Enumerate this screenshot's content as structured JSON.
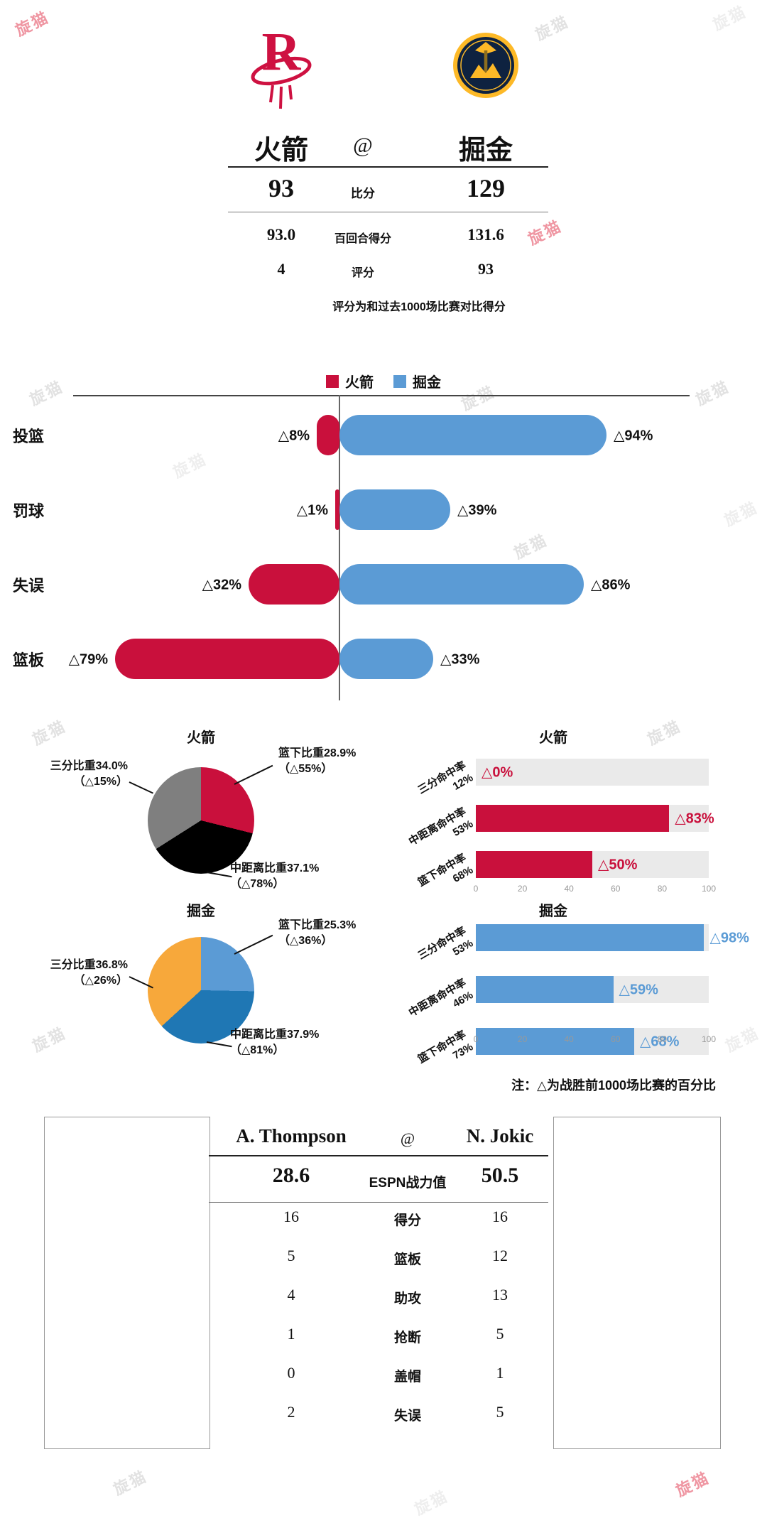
{
  "watermark": "旋猫",
  "header": {
    "away_team": "火箭",
    "home_team": "掘金",
    "at": "@",
    "rows": [
      {
        "label": "比分",
        "away": "93",
        "home": "129"
      },
      {
        "label": "百回合得分",
        "away": "93.0",
        "home": "131.6"
      },
      {
        "label": "评分",
        "away": "4",
        "home": "93"
      }
    ],
    "note": "评分为和过去1000场比赛对比得分"
  },
  "charts_note": "注：△为战胜前1000场比赛的百分比",
  "chart_data": [
    {
      "type": "bar",
      "subtype": "diverging-horizontal",
      "categories": [
        "投篮",
        "罚球",
        "失误",
        "篮板"
      ],
      "series": [
        {
          "name": "火箭",
          "color": "#C9103C",
          "values": [
            8,
            1,
            32,
            79
          ],
          "labels": [
            "△8%",
            "△1%",
            "△32%",
            "△79%"
          ]
        },
        {
          "name": "掘金",
          "color": "#5B9BD5",
          "values": [
            94,
            39,
            86,
            33
          ],
          "labels": [
            "△94%",
            "△39%",
            "△86%",
            "△33%"
          ]
        }
      ],
      "xlim": [
        0,
        100
      ],
      "legend_position": "top"
    },
    {
      "type": "pie",
      "title": "火箭",
      "slices": [
        {
          "text": "篮下比重28.9%",
          "delta": "（△55%）",
          "value": 28.9,
          "color": "#C9103C"
        },
        {
          "text": "中距离比重37.1%",
          "delta": "（△78%）",
          "value": 37.1,
          "color": "#000000"
        },
        {
          "text": "三分比重34.0%",
          "delta": "（△15%）",
          "value": 34.0,
          "color": "#7F7F7F"
        }
      ]
    },
    {
      "type": "pie",
      "title": "掘金",
      "slices": [
        {
          "text": "篮下比重25.3%",
          "delta": "（△36%）",
          "value": 25.3,
          "color": "#5B9BD5"
        },
        {
          "text": "中距离比重37.9%",
          "delta": "（△81%）",
          "value": 37.9,
          "color": "#1F77B4"
        },
        {
          "text": "三分比重36.8%",
          "delta": "（△26%）",
          "value": 36.8,
          "color": "#F7A83B"
        }
      ]
    },
    {
      "type": "bar",
      "title": "火箭",
      "color": "#C9103C",
      "track_color": "#EAEAEA",
      "categories": [
        {
          "name": "三分命中率",
          "pct": "12%"
        },
        {
          "name": "中距离命中率",
          "pct": "53%"
        },
        {
          "name": "篮下命中率",
          "pct": "68%"
        }
      ],
      "values": [
        0,
        83,
        50
      ],
      "labels": [
        "△0%",
        "△83%",
        "△50%"
      ],
      "xticks": [
        0,
        20,
        40,
        60,
        80,
        100
      ],
      "xlim": [
        0,
        100
      ]
    },
    {
      "type": "bar",
      "title": "掘金",
      "color": "#5B9BD5",
      "track_color": "#EAEAEA",
      "categories": [
        {
          "name": "三分命中率",
          "pct": "53%"
        },
        {
          "name": "中距离命中率",
          "pct": "46%"
        },
        {
          "name": "篮下命中率",
          "pct": "73%"
        }
      ],
      "values": [
        98,
        59,
        68
      ],
      "labels": [
        "△98%",
        "△59%",
        "△68%"
      ],
      "xticks": [
        0,
        20,
        40,
        60,
        80,
        100
      ],
      "xlim": [
        0,
        100
      ]
    }
  ],
  "players": {
    "away_name": "A. Thompson",
    "at": "@",
    "home_name": "N. Jokic",
    "power": {
      "away": "28.6",
      "label": "ESPN战力值",
      "home": "50.5"
    },
    "rows": [
      {
        "away": "16",
        "label": "得分",
        "home": "16"
      },
      {
        "away": "5",
        "label": "篮板",
        "home": "12"
      },
      {
        "away": "4",
        "label": "助攻",
        "home": "13"
      },
      {
        "away": "1",
        "label": "抢断",
        "home": "5"
      },
      {
        "away": "0",
        "label": "盖帽",
        "home": "1"
      },
      {
        "away": "2",
        "label": "失误",
        "home": "5"
      }
    ]
  },
  "teams": {
    "rockets_red": "#CE1141",
    "nuggets_navy": "#0E2240",
    "nuggets_gold": "#FDB927"
  }
}
